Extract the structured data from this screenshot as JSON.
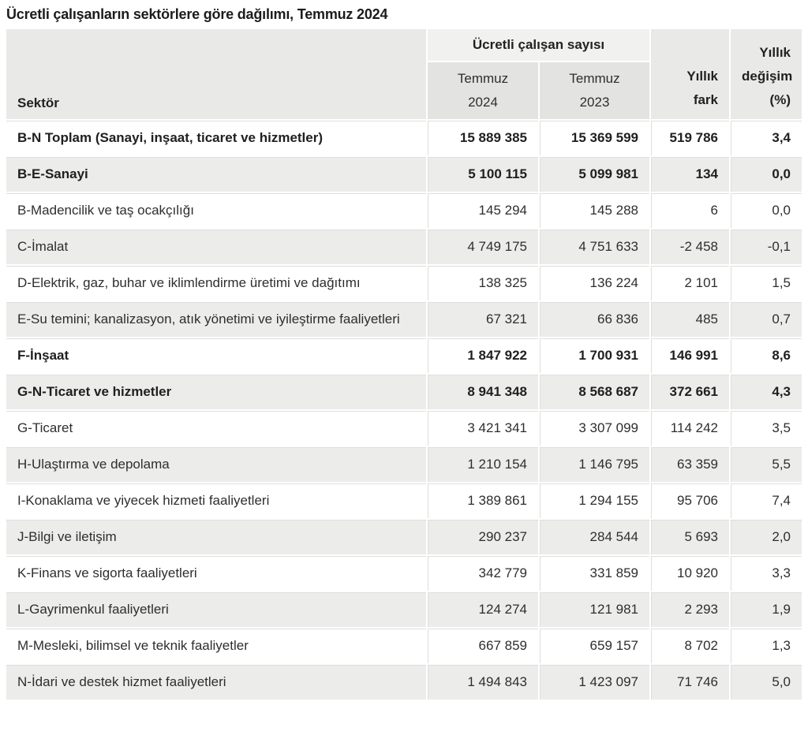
{
  "title": "Ücretli çalışanların sektörlere göre dağılımı, Temmuz 2024",
  "colors": {
    "header_side_bg": "#e9e9e8",
    "header_group_bg": "#f1f1f0",
    "header_sub_bg": "#e3e3e2",
    "stripe_bg": "#ececeb",
    "separator_line": "#dedede",
    "text": "#2e2e2e"
  },
  "table": {
    "col_sector": "Sektör",
    "col_group": "Ücretli çalışan sayısı",
    "col_t2024": "Temmuz\n2024",
    "col_t2023": "Temmuz\n2023",
    "col_fark": "Yıllık\nfark",
    "col_degisim": "Yıllık\ndeğişim\n(%)",
    "rows": [
      {
        "label": "B-N Toplam (Sanayi, inşaat, ticaret ve hizmetler)",
        "t2024": "15 889 385",
        "t2023": "15 369 599",
        "fark": "519 786",
        "degisim": "3,4",
        "bold": true
      },
      {
        "label": "B-E-Sanayi",
        "t2024": "5 100 115",
        "t2023": "5 099 981",
        "fark": "134",
        "degisim": "0,0",
        "bold": true
      },
      {
        "label": "B-Madencilik ve taş ocakçılığı",
        "t2024": "145 294",
        "t2023": "145 288",
        "fark": "6",
        "degisim": "0,0",
        "bold": false
      },
      {
        "label": "C-İmalat",
        "t2024": "4 749 175",
        "t2023": "4 751 633",
        "fark": "-2 458",
        "degisim": "-0,1",
        "bold": false
      },
      {
        "label": "D-Elektrik, gaz, buhar ve iklimlendirme üretimi ve dağıtımı",
        "t2024": "138 325",
        "t2023": "136 224",
        "fark": "2 101",
        "degisim": "1,5",
        "bold": false
      },
      {
        "label": "E-Su temini; kanalizasyon, atık yönetimi ve iyileştirme faaliyetleri",
        "t2024": "67 321",
        "t2023": "66 836",
        "fark": "485",
        "degisim": "0,7",
        "bold": false
      },
      {
        "label": "F-İnşaat",
        "t2024": "1 847 922",
        "t2023": "1 700 931",
        "fark": "146 991",
        "degisim": "8,6",
        "bold": true
      },
      {
        "label": "G-N-Ticaret ve hizmetler",
        "t2024": "8 941 348",
        "t2023": "8 568 687",
        "fark": "372 661",
        "degisim": "4,3",
        "bold": true
      },
      {
        "label": "G-Ticaret",
        "t2024": "3 421 341",
        "t2023": "3 307 099",
        "fark": "114 242",
        "degisim": "3,5",
        "bold": false
      },
      {
        "label": "H-Ulaştırma ve depolama",
        "t2024": "1 210 154",
        "t2023": "1 146 795",
        "fark": "63 359",
        "degisim": "5,5",
        "bold": false
      },
      {
        "label": "I-Konaklama ve yiyecek hizmeti faaliyetleri",
        "t2024": "1 389 861",
        "t2023": "1 294 155",
        "fark": "95 706",
        "degisim": "7,4",
        "bold": false
      },
      {
        "label": "J-Bilgi ve iletişim",
        "t2024": "290 237",
        "t2023": "284 544",
        "fark": "5 693",
        "degisim": "2,0",
        "bold": false
      },
      {
        "label": "K-Finans ve sigorta faaliyetleri",
        "t2024": "342 779",
        "t2023": "331 859",
        "fark": "10 920",
        "degisim": "3,3",
        "bold": false
      },
      {
        "label": "L-Gayrimenkul faaliyetleri",
        "t2024": "124 274",
        "t2023": "121 981",
        "fark": "2 293",
        "degisim": "1,9",
        "bold": false
      },
      {
        "label": "M-Mesleki, bilimsel ve teknik faaliyetler",
        "t2024": "667 859",
        "t2023": "659 157",
        "fark": "8 702",
        "degisim": "1,3",
        "bold": false
      },
      {
        "label": "N-İdari ve destek hizmet faaliyetleri",
        "t2024": "1 494 843",
        "t2023": "1 423 097",
        "fark": "71 746",
        "degisim": "5,0",
        "bold": false
      }
    ]
  },
  "chart_data": {
    "type": "table",
    "title": "Ücretli çalışanların sektörlere göre dağılımı, Temmuz 2024",
    "columns": [
      "Sektör",
      "Ücretli çalışan sayısı — Temmuz 2024",
      "Ücretli çalışan sayısı — Temmuz 2023",
      "Yıllık fark",
      "Yıllık değişim (%)"
    ],
    "rows": [
      [
        "B-N Toplam (Sanayi, inşaat, ticaret ve hizmetler)",
        15889385,
        15369599,
        519786,
        3.4
      ],
      [
        "B-E-Sanayi",
        5100115,
        5099981,
        134,
        0.0
      ],
      [
        "B-Madencilik ve taş ocakçılığı",
        145294,
        145288,
        6,
        0.0
      ],
      [
        "C-İmalat",
        4749175,
        4751633,
        -2458,
        -0.1
      ],
      [
        "D-Elektrik, gaz, buhar ve iklimlendirme üretimi ve dağıtımı",
        138325,
        136224,
        2101,
        1.5
      ],
      [
        "E-Su temini; kanalizasyon, atık yönetimi ve iyileştirme faaliyetleri",
        67321,
        66836,
        485,
        0.7
      ],
      [
        "F-İnşaat",
        1847922,
        1700931,
        146991,
        8.6
      ],
      [
        "G-N-Ticaret ve hizmetler",
        8941348,
        8568687,
        372661,
        4.3
      ],
      [
        "G-Ticaret",
        3421341,
        3307099,
        114242,
        3.5
      ],
      [
        "H-Ulaştırma ve depolama",
        1210154,
        1146795,
        63359,
        5.5
      ],
      [
        "I-Konaklama ve yiyecek hizmeti faaliyetleri",
        1389861,
        1294155,
        95706,
        7.4
      ],
      [
        "J-Bilgi ve iletişim",
        290237,
        284544,
        5693,
        2.0
      ],
      [
        "K-Finans ve sigorta faaliyetleri",
        342779,
        331859,
        10920,
        3.3
      ],
      [
        "L-Gayrimenkul faaliyetleri",
        124274,
        121981,
        2293,
        1.9
      ],
      [
        "M-Mesleki, bilimsel ve teknik faaliyetler",
        667859,
        659157,
        8702,
        1.3
      ],
      [
        "N-İdari ve destek hizmet faaliyetleri",
        1494843,
        1423097,
        71746,
        5.0
      ]
    ]
  }
}
